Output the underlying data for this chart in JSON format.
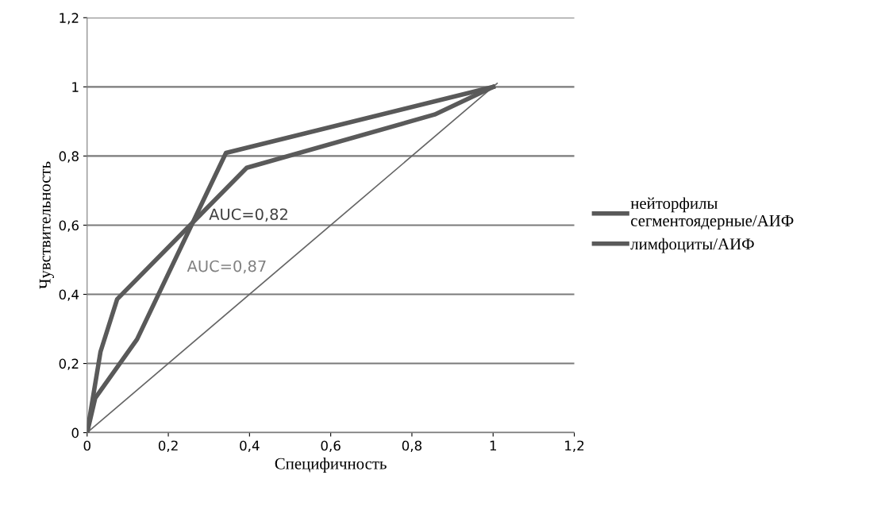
{
  "chart_data": {
    "type": "line",
    "xlabel": "Специфичность",
    "ylabel": "Чувствительность",
    "series": [
      {
        "name": "нейторфилы сегментоядерные/АИФ",
        "color": "#595959",
        "x": [
          0,
          0.02,
          0.123,
          0.342,
          1
        ],
        "values": [
          0,
          0.1,
          0.27,
          0.809,
          1
        ]
      },
      {
        "name": "лимфоциты/АИФ",
        "color": "#5a5a5a",
        "x": [
          0,
          0.033,
          0.074,
          0.393,
          0.856,
          1
        ],
        "values": [
          0,
          0.234,
          0.386,
          0.766,
          0.92,
          1
        ]
      },
      {
        "color": "#666666",
        "x": [
          0,
          1.01
        ],
        "values": [
          0,
          1.01
        ]
      }
    ],
    "annotations": [
      "AUC=0,82",
      "AUC=0,87"
    ],
    "xlim": [
      0,
      1.2
    ],
    "ylim": [
      0,
      1.2
    ],
    "xticks": [
      0,
      {
        "value": 0.2,
        "label": "0,2"
      },
      {
        "value": 0.4,
        "label": "0,4"
      },
      {
        "value": 0.6,
        "label": "0,6"
      },
      {
        "value": 0.8,
        "label": "0,8"
      },
      1,
      {
        "value": 1.2,
        "label": "1,2"
      }
    ],
    "yticks": [
      0,
      {
        "value": 0.2,
        "label": "0,2"
      },
      {
        "value": 0.4,
        "label": "0,4"
      },
      {
        "value": 0.6,
        "label": "0,6"
      },
      {
        "value": 0.8,
        "label": "0,8"
      },
      1,
      {
        "value": 1.2,
        "label": "1,2"
      }
    ],
    "grid": "y",
    "legend": "right",
    "marker": "none",
    "line_style": "solid"
  }
}
